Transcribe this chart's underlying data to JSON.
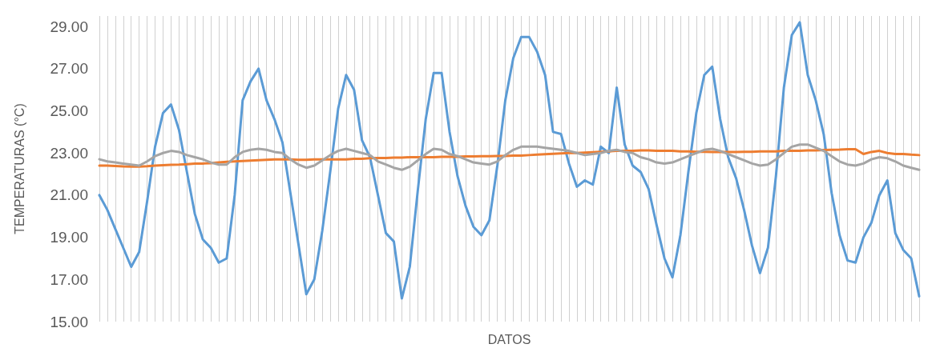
{
  "chart_data": {
    "type": "line",
    "xlabel": "DATOS",
    "ylabel": "TEMPERATURAS (°C)",
    "categories": [
      null,
      null,
      null,
      null,
      null,
      null,
      null,
      null,
      null,
      null,
      null,
      null,
      null,
      null,
      null,
      null,
      null,
      null,
      null,
      null,
      null,
      null,
      null,
      null,
      null,
      null,
      null,
      null,
      null,
      null,
      null,
      null,
      null,
      null,
      null,
      null,
      null,
      null,
      null,
      null,
      null,
      null,
      null,
      null,
      null,
      null,
      null,
      null,
      null,
      null,
      null,
      null,
      null,
      null,
      null,
      null,
      null,
      null,
      null,
      null,
      null,
      null,
      null,
      null,
      null,
      null,
      null,
      null,
      null,
      null,
      null,
      null,
      null,
      null,
      null,
      null,
      null,
      null,
      null,
      null,
      null,
      null,
      null,
      null,
      null,
      null,
      null,
      null,
      null,
      null,
      null,
      null,
      null,
      null,
      null,
      null,
      null,
      null,
      null,
      null,
      null,
      null,
      null,
      null
    ],
    "series": [
      {
        "color": "#5b9bd5",
        "values": [
          21.0,
          20.3,
          19.4,
          18.5,
          17.6,
          18.3,
          20.7,
          23.3,
          24.9,
          25.3,
          24.1,
          22.1,
          20.1,
          18.9,
          18.5,
          17.8,
          18.0,
          21.0,
          25.5,
          26.4,
          27.0,
          25.5,
          24.6,
          23.5,
          21.1,
          18.7,
          16.3,
          17.0,
          19.3,
          22.1,
          25.1,
          26.7,
          26.0,
          23.6,
          22.8,
          21.0,
          19.2,
          18.8,
          16.1,
          17.6,
          21.2,
          24.6,
          26.8,
          26.8,
          24.0,
          21.9,
          20.5,
          19.5,
          19.1,
          19.8,
          22.4,
          25.5,
          27.5,
          28.5,
          28.5,
          27.8,
          26.7,
          24.0,
          23.9,
          22.5,
          21.4,
          21.7,
          21.5,
          23.3,
          23.0,
          26.1,
          23.4,
          22.4,
          22.1,
          21.3,
          19.6,
          18.0,
          17.1,
          19.1,
          22.1,
          24.9,
          26.7,
          27.1,
          24.6,
          22.8,
          21.8,
          20.3,
          18.6,
          17.3,
          18.5,
          21.9,
          26.1,
          28.6,
          29.2,
          26.7,
          25.5,
          23.9,
          21.1,
          19.1,
          17.9,
          17.8,
          19.0,
          19.7,
          21.0,
          21.7,
          19.2,
          18.4,
          18.0,
          16.2
        ]
      },
      {
        "color": "#ed7d31",
        "values": [
          22.4,
          22.4,
          22.38,
          22.36,
          22.35,
          22.35,
          22.37,
          22.4,
          22.42,
          22.44,
          22.45,
          22.47,
          22.5,
          22.5,
          22.52,
          22.55,
          22.58,
          22.6,
          22.62,
          22.64,
          22.66,
          22.68,
          22.7,
          22.7,
          22.7,
          22.68,
          22.68,
          22.7,
          22.7,
          22.7,
          22.7,
          22.7,
          22.72,
          22.72,
          22.75,
          22.76,
          22.76,
          22.78,
          22.78,
          22.8,
          22.8,
          22.8,
          22.8,
          22.82,
          22.82,
          22.82,
          22.84,
          22.84,
          22.85,
          22.85,
          22.86,
          22.86,
          22.88,
          22.88,
          22.9,
          22.92,
          22.94,
          22.96,
          22.98,
          23.0,
          23.0,
          23.02,
          23.04,
          23.06,
          23.08,
          23.1,
          23.1,
          23.1,
          23.12,
          23.12,
          23.1,
          23.1,
          23.1,
          23.08,
          23.08,
          23.06,
          23.06,
          23.05,
          23.05,
          23.05,
          23.05,
          23.06,
          23.06,
          23.08,
          23.08,
          23.08,
          23.1,
          23.1,
          23.1,
          23.12,
          23.12,
          23.14,
          23.15,
          23.16,
          23.18,
          23.18,
          22.95,
          23.05,
          23.1,
          23.0,
          22.95,
          22.95,
          22.92,
          22.9
        ]
      },
      {
        "color": "#a5a5a5",
        "values": [
          22.7,
          22.6,
          22.55,
          22.5,
          22.45,
          22.4,
          22.6,
          22.85,
          23.0,
          23.1,
          23.05,
          22.9,
          22.8,
          22.7,
          22.55,
          22.45,
          22.45,
          22.8,
          23.05,
          23.15,
          23.2,
          23.15,
          23.05,
          23.0,
          22.7,
          22.45,
          22.3,
          22.4,
          22.65,
          22.9,
          23.1,
          23.2,
          23.1,
          23.0,
          22.9,
          22.6,
          22.45,
          22.3,
          22.2,
          22.35,
          22.65,
          22.95,
          23.2,
          23.15,
          22.95,
          22.85,
          22.7,
          22.55,
          22.5,
          22.45,
          22.6,
          22.9,
          23.15,
          23.3,
          23.3,
          23.3,
          23.25,
          23.2,
          23.15,
          23.1,
          23.0,
          22.9,
          22.95,
          23.0,
          23.1,
          23.15,
          23.05,
          23.0,
          22.8,
          22.7,
          22.55,
          22.5,
          22.55,
          22.7,
          22.85,
          23.0,
          23.15,
          23.2,
          23.1,
          22.95,
          22.8,
          22.65,
          22.5,
          22.4,
          22.45,
          22.7,
          23.0,
          23.3,
          23.4,
          23.4,
          23.25,
          23.1,
          22.85,
          22.6,
          22.45,
          22.4,
          22.5,
          22.7,
          22.8,
          22.75,
          22.6,
          22.4,
          22.3,
          22.2
        ]
      }
    ],
    "ylim": [
      15,
      29.5
    ],
    "yticks": [
      {
        "value": 15,
        "label": "15.00"
      },
      {
        "value": 17,
        "label": "17.00"
      },
      {
        "value": 19,
        "label": "19.00"
      },
      {
        "value": 21,
        "label": "21.00"
      },
      {
        "value": 23,
        "label": "23.00"
      },
      {
        "value": 25,
        "label": "25.00"
      },
      {
        "value": 27,
        "label": "27.00"
      },
      {
        "value": 29,
        "label": "29.00"
      }
    ],
    "grid": "x",
    "marker": "none",
    "line_style": "solid"
  }
}
